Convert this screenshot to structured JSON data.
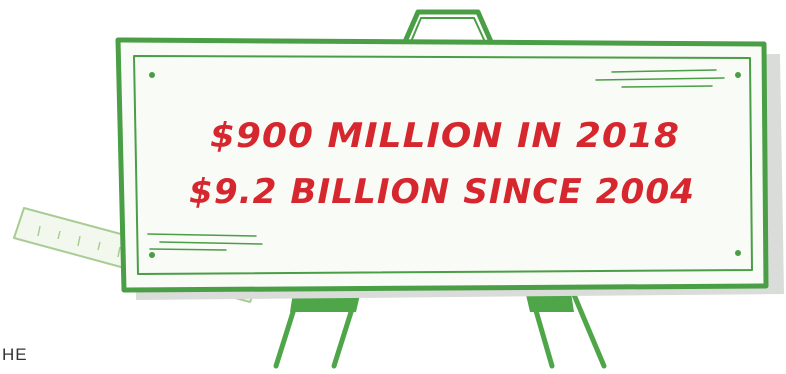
{
  "sign": {
    "line1": "$900 MILLION IN 2018",
    "line2": "$9.2 BILLION SINCE 2004"
  },
  "corner_text": "HE",
  "colors": {
    "frame_green": "#4a9e45",
    "board_fill": "#f9fbf6",
    "shadow_gray": "#d9dcd9",
    "leg_green": "#4ea648",
    "ruler_green": "#a9cc93",
    "text_red": "#d6262e",
    "corner_text": "#333333"
  }
}
